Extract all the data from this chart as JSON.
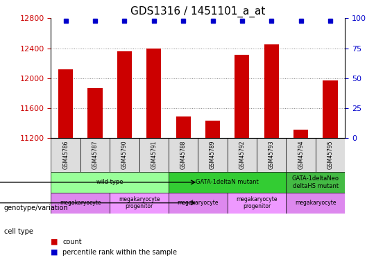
{
  "title": "GDS1316 / 1451101_a_at",
  "samples": [
    "GSM45786",
    "GSM45787",
    "GSM45790",
    "GSM45791",
    "GSM45788",
    "GSM45789",
    "GSM45792",
    "GSM45793",
    "GSM45794",
    "GSM45795"
  ],
  "counts": [
    12120,
    11870,
    12360,
    12400,
    11490,
    11430,
    12310,
    12450,
    11310,
    11970
  ],
  "percentiles": [
    100,
    100,
    100,
    100,
    100,
    100,
    100,
    100,
    100,
    100
  ],
  "ylim": [
    11200,
    12800
  ],
  "yticks": [
    11200,
    11600,
    12000,
    12400,
    12800
  ],
  "right_yticks": [
    0,
    25,
    50,
    75,
    100
  ],
  "bar_color": "#cc0000",
  "percentile_color": "#0000cc",
  "grid_color": "#888888",
  "genotype_groups": [
    {
      "label": "wild type",
      "start": 0,
      "end": 3,
      "color": "#99ff99"
    },
    {
      "label": "GATA-1deltaN mutant",
      "start": 4,
      "end": 7,
      "color": "#33cc33"
    },
    {
      "label": "GATA-1deltaNeo\ndeltaHS mutant",
      "start": 8,
      "end": 9,
      "color": "#44bb44"
    }
  ],
  "cell_type_groups": [
    {
      "label": "megakaryocyte",
      "start": 0,
      "end": 1,
      "color": "#dd88ee"
    },
    {
      "label": "megakaryocyte\nprogenitor",
      "start": 2,
      "end": 3,
      "color": "#ee99ff"
    },
    {
      "label": "megakaryocyte",
      "start": 4,
      "end": 5,
      "color": "#dd88ee"
    },
    {
      "label": "megakaryocyte\nprogenitor",
      "start": 6,
      "end": 7,
      "color": "#ee99ff"
    },
    {
      "label": "megakaryocyte",
      "start": 8,
      "end": 9,
      "color": "#dd88ee"
    }
  ],
  "legend_count_color": "#cc0000",
  "legend_percentile_color": "#0000cc",
  "xlabel_fontsize": 7,
  "title_fontsize": 11,
  "label_fontsize": 8,
  "tick_fontsize": 8
}
